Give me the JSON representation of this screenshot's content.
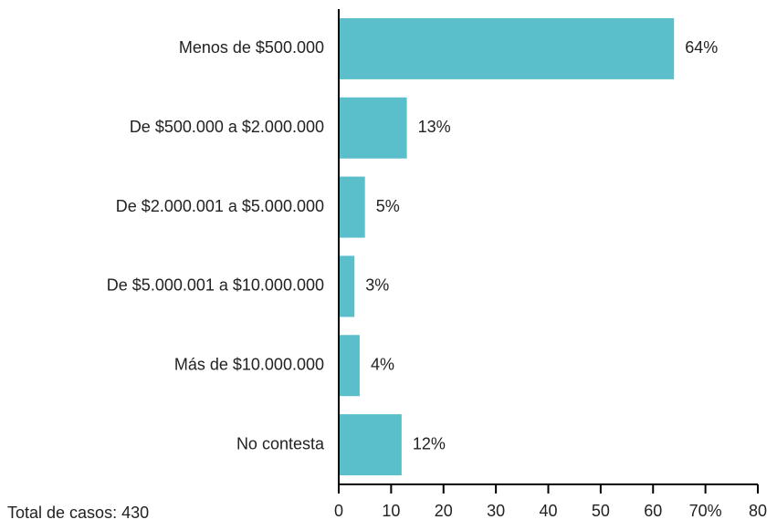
{
  "chart_data": {
    "type": "bar",
    "orientation": "horizontal",
    "categories": [
      "Menos de $500.000",
      "De $500.000 a $2.000.000",
      "De $2.000.001 a $5.000.000",
      "De $5.000.001 a $10.000.000",
      "Más de $10.000.000",
      "No contesta"
    ],
    "values": [
      64,
      13,
      5,
      3,
      4,
      12
    ],
    "value_labels": [
      "64%",
      "13%",
      "5%",
      "3%",
      "4%",
      "12%"
    ],
    "color": "#5bbfcb",
    "xlim": [
      0,
      80
    ],
    "xticks": [
      0,
      10,
      20,
      30,
      40,
      50,
      60,
      {
        "value": 70,
        "label": "70%"
      },
      80
    ],
    "annotation": "Total de casos: 430"
  }
}
